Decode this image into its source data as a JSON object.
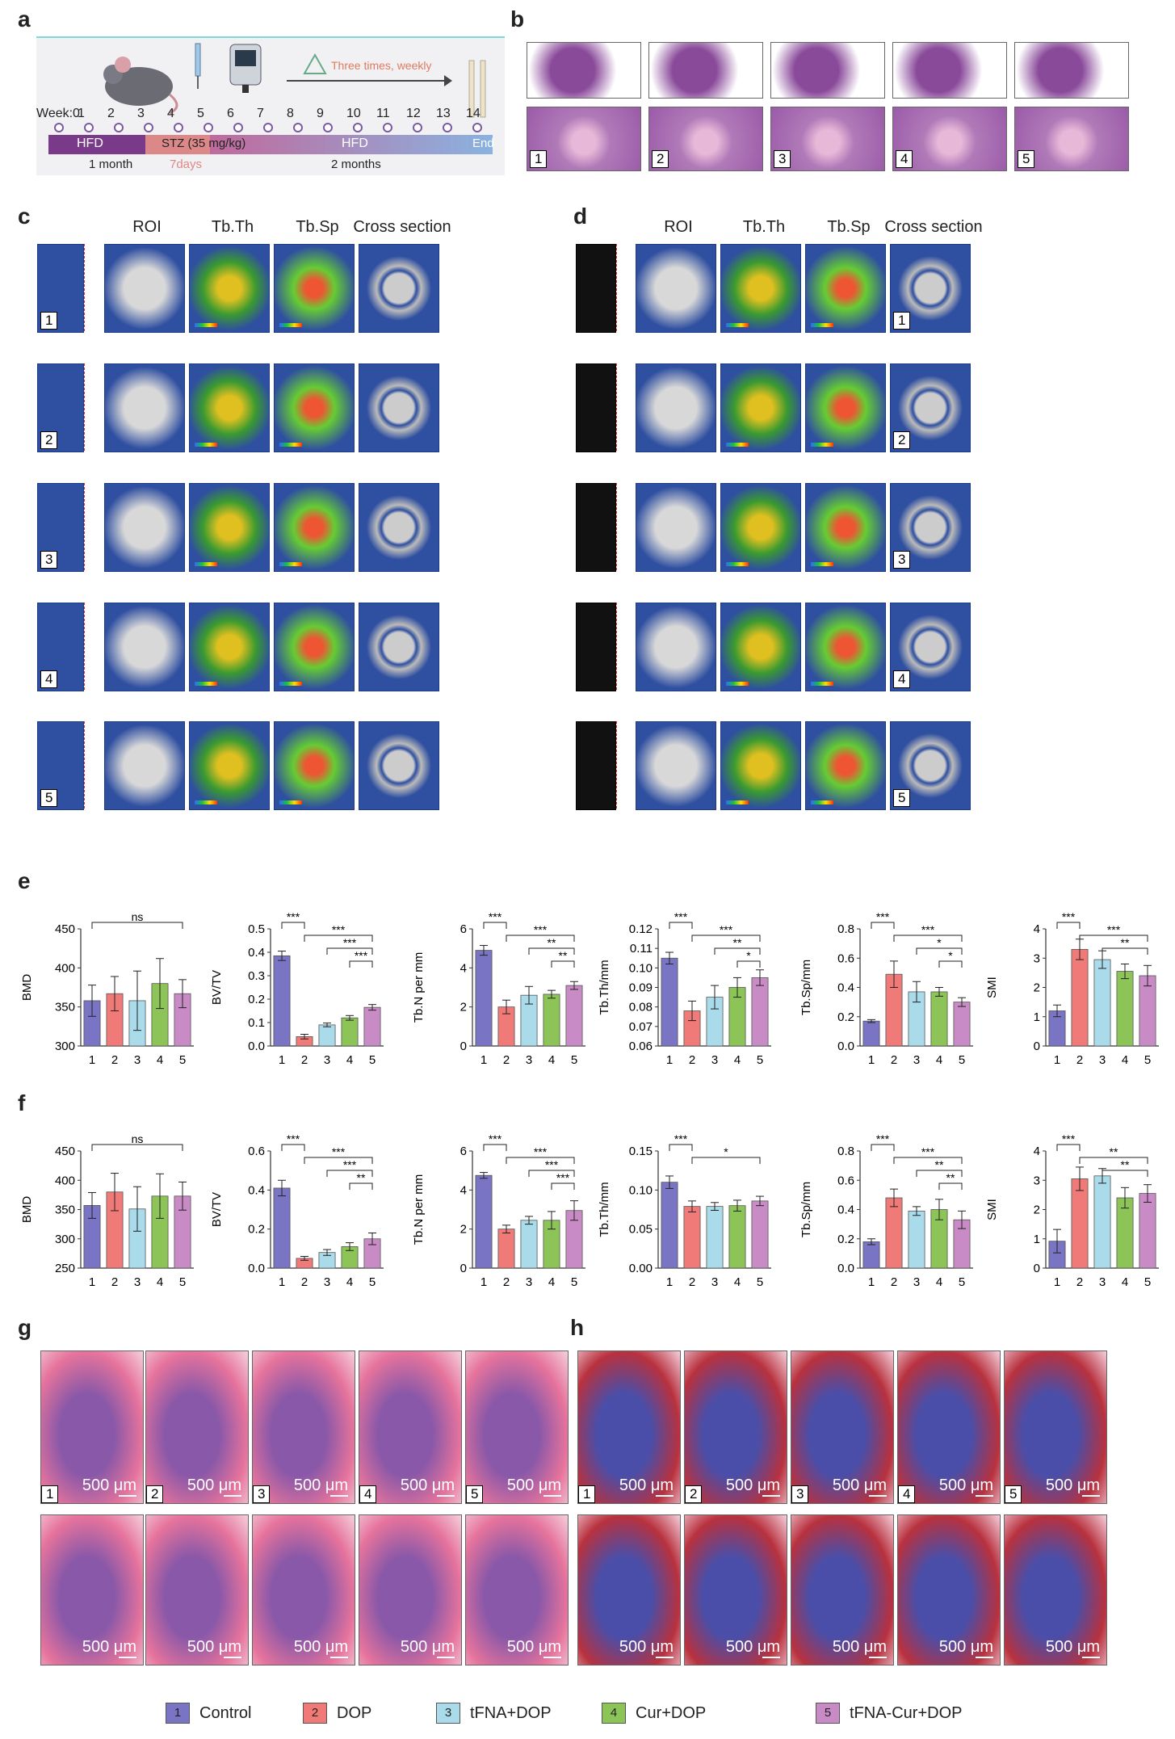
{
  "panels": {
    "a": "a",
    "b": "b",
    "c": "c",
    "d": "d",
    "e": "e",
    "f": "f",
    "g": "g",
    "h": "h"
  },
  "timeline": {
    "weeks": [
      "Week:0",
      "1",
      "2",
      "3",
      "4",
      "5",
      "6",
      "7",
      "8",
      "9",
      "10",
      "11",
      "12",
      "13",
      "14"
    ],
    "repeat_label": "Three times, weekly",
    "phase1": "HFD",
    "phase1_duration": "1 month",
    "stz": "STZ (35 mg/kg)",
    "stz_duration": "7days",
    "phase2": "HFD",
    "phase2_duration": "2 months",
    "end": "End"
  },
  "he_insets": [
    "1",
    "2",
    "3",
    "4",
    "5"
  ],
  "microct": {
    "headers": [
      "ROI",
      "Tb.Th",
      "Tb.Sp",
      "Cross section"
    ],
    "rows": [
      "1",
      "2",
      "3",
      "4",
      "5"
    ]
  },
  "groups": [
    {
      "id": "1",
      "name": "Control",
      "color": "#7a74c4"
    },
    {
      "id": "2",
      "name": "DOP",
      "color": "#f07a78"
    },
    {
      "id": "3",
      "name": "tFNA+DOP",
      "color": "#a9dbeb"
    },
    {
      "id": "4",
      "name": "Cur+DOP",
      "color": "#8cc457"
    },
    {
      "id": "5",
      "name": "tFNA-Cur+DOP",
      "color": "#c98bc6"
    }
  ],
  "chart_data": [
    {
      "panel": "e",
      "type": "bar",
      "ylabel": "BMD",
      "ylim": [
        300,
        450
      ],
      "yticks": [
        "300",
        "350",
        "400",
        "450"
      ],
      "categories": [
        "1",
        "2",
        "3",
        "4",
        "5"
      ],
      "values": [
        358,
        367,
        358,
        380,
        367
      ],
      "errors": [
        20,
        22,
        38,
        32,
        18
      ],
      "annotations": [
        {
          "from": 1,
          "to": 5,
          "label": "ns"
        }
      ]
    },
    {
      "panel": "e",
      "type": "bar",
      "ylabel": "BV/TV",
      "ylim": [
        0,
        0.5
      ],
      "yticks": [
        "0.0",
        "0.1",
        "0.2",
        "0.3",
        "0.4",
        "0.5"
      ],
      "categories": [
        "1",
        "2",
        "3",
        "4",
        "5"
      ],
      "values": [
        0.385,
        0.04,
        0.09,
        0.12,
        0.165
      ],
      "errors": [
        0.02,
        0.01,
        0.008,
        0.01,
        0.012
      ],
      "annotations": [
        {
          "from": 1,
          "to": 2,
          "label": "***"
        },
        {
          "from": 2,
          "to": 5,
          "label": "***"
        },
        {
          "from": 3,
          "to": 5,
          "label": "***"
        },
        {
          "from": 4,
          "to": 5,
          "label": "***"
        }
      ]
    },
    {
      "panel": "e",
      "type": "bar",
      "ylabel": "Tb.N per mm",
      "ylim": [
        0,
        6
      ],
      "yticks": [
        "0",
        "2",
        "4",
        "6"
      ],
      "categories": [
        "1",
        "2",
        "3",
        "4",
        "5"
      ],
      "values": [
        4.9,
        2.0,
        2.6,
        2.65,
        3.1
      ],
      "errors": [
        0.25,
        0.35,
        0.45,
        0.2,
        0.2
      ],
      "annotations": [
        {
          "from": 1,
          "to": 2,
          "label": "***"
        },
        {
          "from": 2,
          "to": 5,
          "label": "***"
        },
        {
          "from": 3,
          "to": 5,
          "label": "**"
        },
        {
          "from": 4,
          "to": 5,
          "label": "**"
        }
      ]
    },
    {
      "panel": "e",
      "type": "bar",
      "ylabel": "Tb.Th/mm",
      "ylim": [
        0.06,
        0.12
      ],
      "yticks": [
        "0.06",
        "0.07",
        "0.08",
        "0.09",
        "0.10",
        "0.11",
        "0.12"
      ],
      "categories": [
        "1",
        "2",
        "3",
        "4",
        "5"
      ],
      "values": [
        0.105,
        0.078,
        0.085,
        0.09,
        0.095
      ],
      "errors": [
        0.003,
        0.005,
        0.006,
        0.005,
        0.004
      ],
      "annotations": [
        {
          "from": 1,
          "to": 2,
          "label": "***"
        },
        {
          "from": 2,
          "to": 5,
          "label": "***"
        },
        {
          "from": 3,
          "to": 5,
          "label": "**"
        },
        {
          "from": 4,
          "to": 5,
          "label": "*"
        }
      ]
    },
    {
      "panel": "e",
      "type": "bar",
      "ylabel": "Tb.Sp/mm",
      "ylim": [
        0,
        0.8
      ],
      "yticks": [
        "0.0",
        "0.2",
        "0.4",
        "0.6",
        "0.8"
      ],
      "categories": [
        "1",
        "2",
        "3",
        "4",
        "5"
      ],
      "values": [
        0.17,
        0.49,
        0.37,
        0.37,
        0.3
      ],
      "errors": [
        0.01,
        0.09,
        0.07,
        0.03,
        0.03
      ],
      "annotations": [
        {
          "from": 1,
          "to": 2,
          "label": "***"
        },
        {
          "from": 2,
          "to": 5,
          "label": "***"
        },
        {
          "from": 3,
          "to": 5,
          "label": "*"
        },
        {
          "from": 4,
          "to": 5,
          "label": "*"
        }
      ]
    },
    {
      "panel": "e",
      "type": "bar",
      "ylabel": "SMI",
      "ylim": [
        0,
        4
      ],
      "yticks": [
        "0",
        "1",
        "2",
        "3",
        "4"
      ],
      "categories": [
        "1",
        "2",
        "3",
        "4",
        "5"
      ],
      "values": [
        1.2,
        3.3,
        2.95,
        2.55,
        2.4
      ],
      "errors": [
        0.2,
        0.35,
        0.3,
        0.25,
        0.35
      ],
      "annotations": [
        {
          "from": 1,
          "to": 2,
          "label": "***"
        },
        {
          "from": 2,
          "to": 5,
          "label": "***"
        },
        {
          "from": 3,
          "to": 5,
          "label": "**"
        }
      ]
    },
    {
      "panel": "f",
      "type": "bar",
      "ylabel": "BMD",
      "ylim": [
        250,
        450
      ],
      "yticks": [
        "250",
        "300",
        "350",
        "400",
        "450"
      ],
      "categories": [
        "1",
        "2",
        "3",
        "4",
        "5"
      ],
      "values": [
        357,
        380,
        351,
        373,
        373
      ],
      "errors": [
        22,
        32,
        38,
        38,
        24
      ],
      "annotations": [
        {
          "from": 1,
          "to": 5,
          "label": "ns"
        }
      ]
    },
    {
      "panel": "f",
      "type": "bar",
      "ylabel": "BV/TV",
      "ylim": [
        0,
        0.6
      ],
      "yticks": [
        "0.0",
        "0.2",
        "0.4",
        "0.6"
      ],
      "categories": [
        "1",
        "2",
        "3",
        "4",
        "5"
      ],
      "values": [
        0.41,
        0.05,
        0.08,
        0.11,
        0.15
      ],
      "errors": [
        0.04,
        0.01,
        0.015,
        0.02,
        0.03
      ],
      "annotations": [
        {
          "from": 1,
          "to": 2,
          "label": "***"
        },
        {
          "from": 2,
          "to": 5,
          "label": "***"
        },
        {
          "from": 3,
          "to": 5,
          "label": "***"
        },
        {
          "from": 4,
          "to": 5,
          "label": "**"
        }
      ]
    },
    {
      "panel": "f",
      "type": "bar",
      "ylabel": "Tb.N per mm",
      "ylim": [
        0,
        6
      ],
      "yticks": [
        "0",
        "2",
        "4",
        "6"
      ],
      "categories": [
        "1",
        "2",
        "3",
        "4",
        "5"
      ],
      "values": [
        4.75,
        2.0,
        2.45,
        2.45,
        2.95
      ],
      "errors": [
        0.15,
        0.2,
        0.2,
        0.45,
        0.5
      ],
      "annotations": [
        {
          "from": 1,
          "to": 2,
          "label": "***"
        },
        {
          "from": 2,
          "to": 5,
          "label": "***"
        },
        {
          "from": 3,
          "to": 5,
          "label": "***"
        },
        {
          "from": 4,
          "to": 5,
          "label": "***"
        }
      ]
    },
    {
      "panel": "f",
      "type": "bar",
      "ylabel": "Tb.Th/mm",
      "ylim": [
        0,
        0.15
      ],
      "yticks": [
        "0.00",
        "0.05",
        "0.10",
        "0.15"
      ],
      "categories": [
        "1",
        "2",
        "3",
        "4",
        "5"
      ],
      "values": [
        0.11,
        0.079,
        0.079,
        0.08,
        0.086
      ],
      "errors": [
        0.008,
        0.007,
        0.005,
        0.007,
        0.006
      ],
      "annotations": [
        {
          "from": 1,
          "to": 2,
          "label": "***"
        },
        {
          "from": 2,
          "to": 5,
          "label": "*"
        }
      ]
    },
    {
      "panel": "f",
      "type": "bar",
      "ylabel": "Tb.Sp/mm",
      "ylim": [
        0,
        0.8
      ],
      "yticks": [
        "0.0",
        "0.2",
        "0.4",
        "0.6",
        "0.8"
      ],
      "categories": [
        "1",
        "2",
        "3",
        "4",
        "5"
      ],
      "values": [
        0.18,
        0.48,
        0.39,
        0.4,
        0.33
      ],
      "errors": [
        0.02,
        0.06,
        0.03,
        0.07,
        0.06
      ],
      "annotations": [
        {
          "from": 1,
          "to": 2,
          "label": "***"
        },
        {
          "from": 2,
          "to": 5,
          "label": "***"
        },
        {
          "from": 3,
          "to": 5,
          "label": "**"
        },
        {
          "from": 4,
          "to": 5,
          "label": "**"
        }
      ]
    },
    {
      "panel": "f",
      "type": "bar",
      "ylabel": "SMI",
      "ylim": [
        0,
        4
      ],
      "yticks": [
        "0",
        "1",
        "2",
        "3",
        "4"
      ],
      "categories": [
        "1",
        "2",
        "3",
        "4",
        "5"
      ],
      "values": [
        0.92,
        3.05,
        3.15,
        2.4,
        2.55
      ],
      "errors": [
        0.4,
        0.4,
        0.25,
        0.35,
        0.3
      ],
      "annotations": [
        {
          "from": 1,
          "to": 2,
          "label": "***"
        },
        {
          "from": 2,
          "to": 5,
          "label": "**"
        },
        {
          "from": 3,
          "to": 5,
          "label": "**"
        }
      ]
    }
  ],
  "histology": {
    "numbers": [
      "1",
      "2",
      "3",
      "4",
      "5"
    ],
    "scale": "500 μm",
    "g_colors": {
      "bg": "#e6739c",
      "marrow": "#8a58a8"
    },
    "h_colors": {
      "bg": "#b8313e",
      "marrow": "#4a4ea8"
    }
  }
}
